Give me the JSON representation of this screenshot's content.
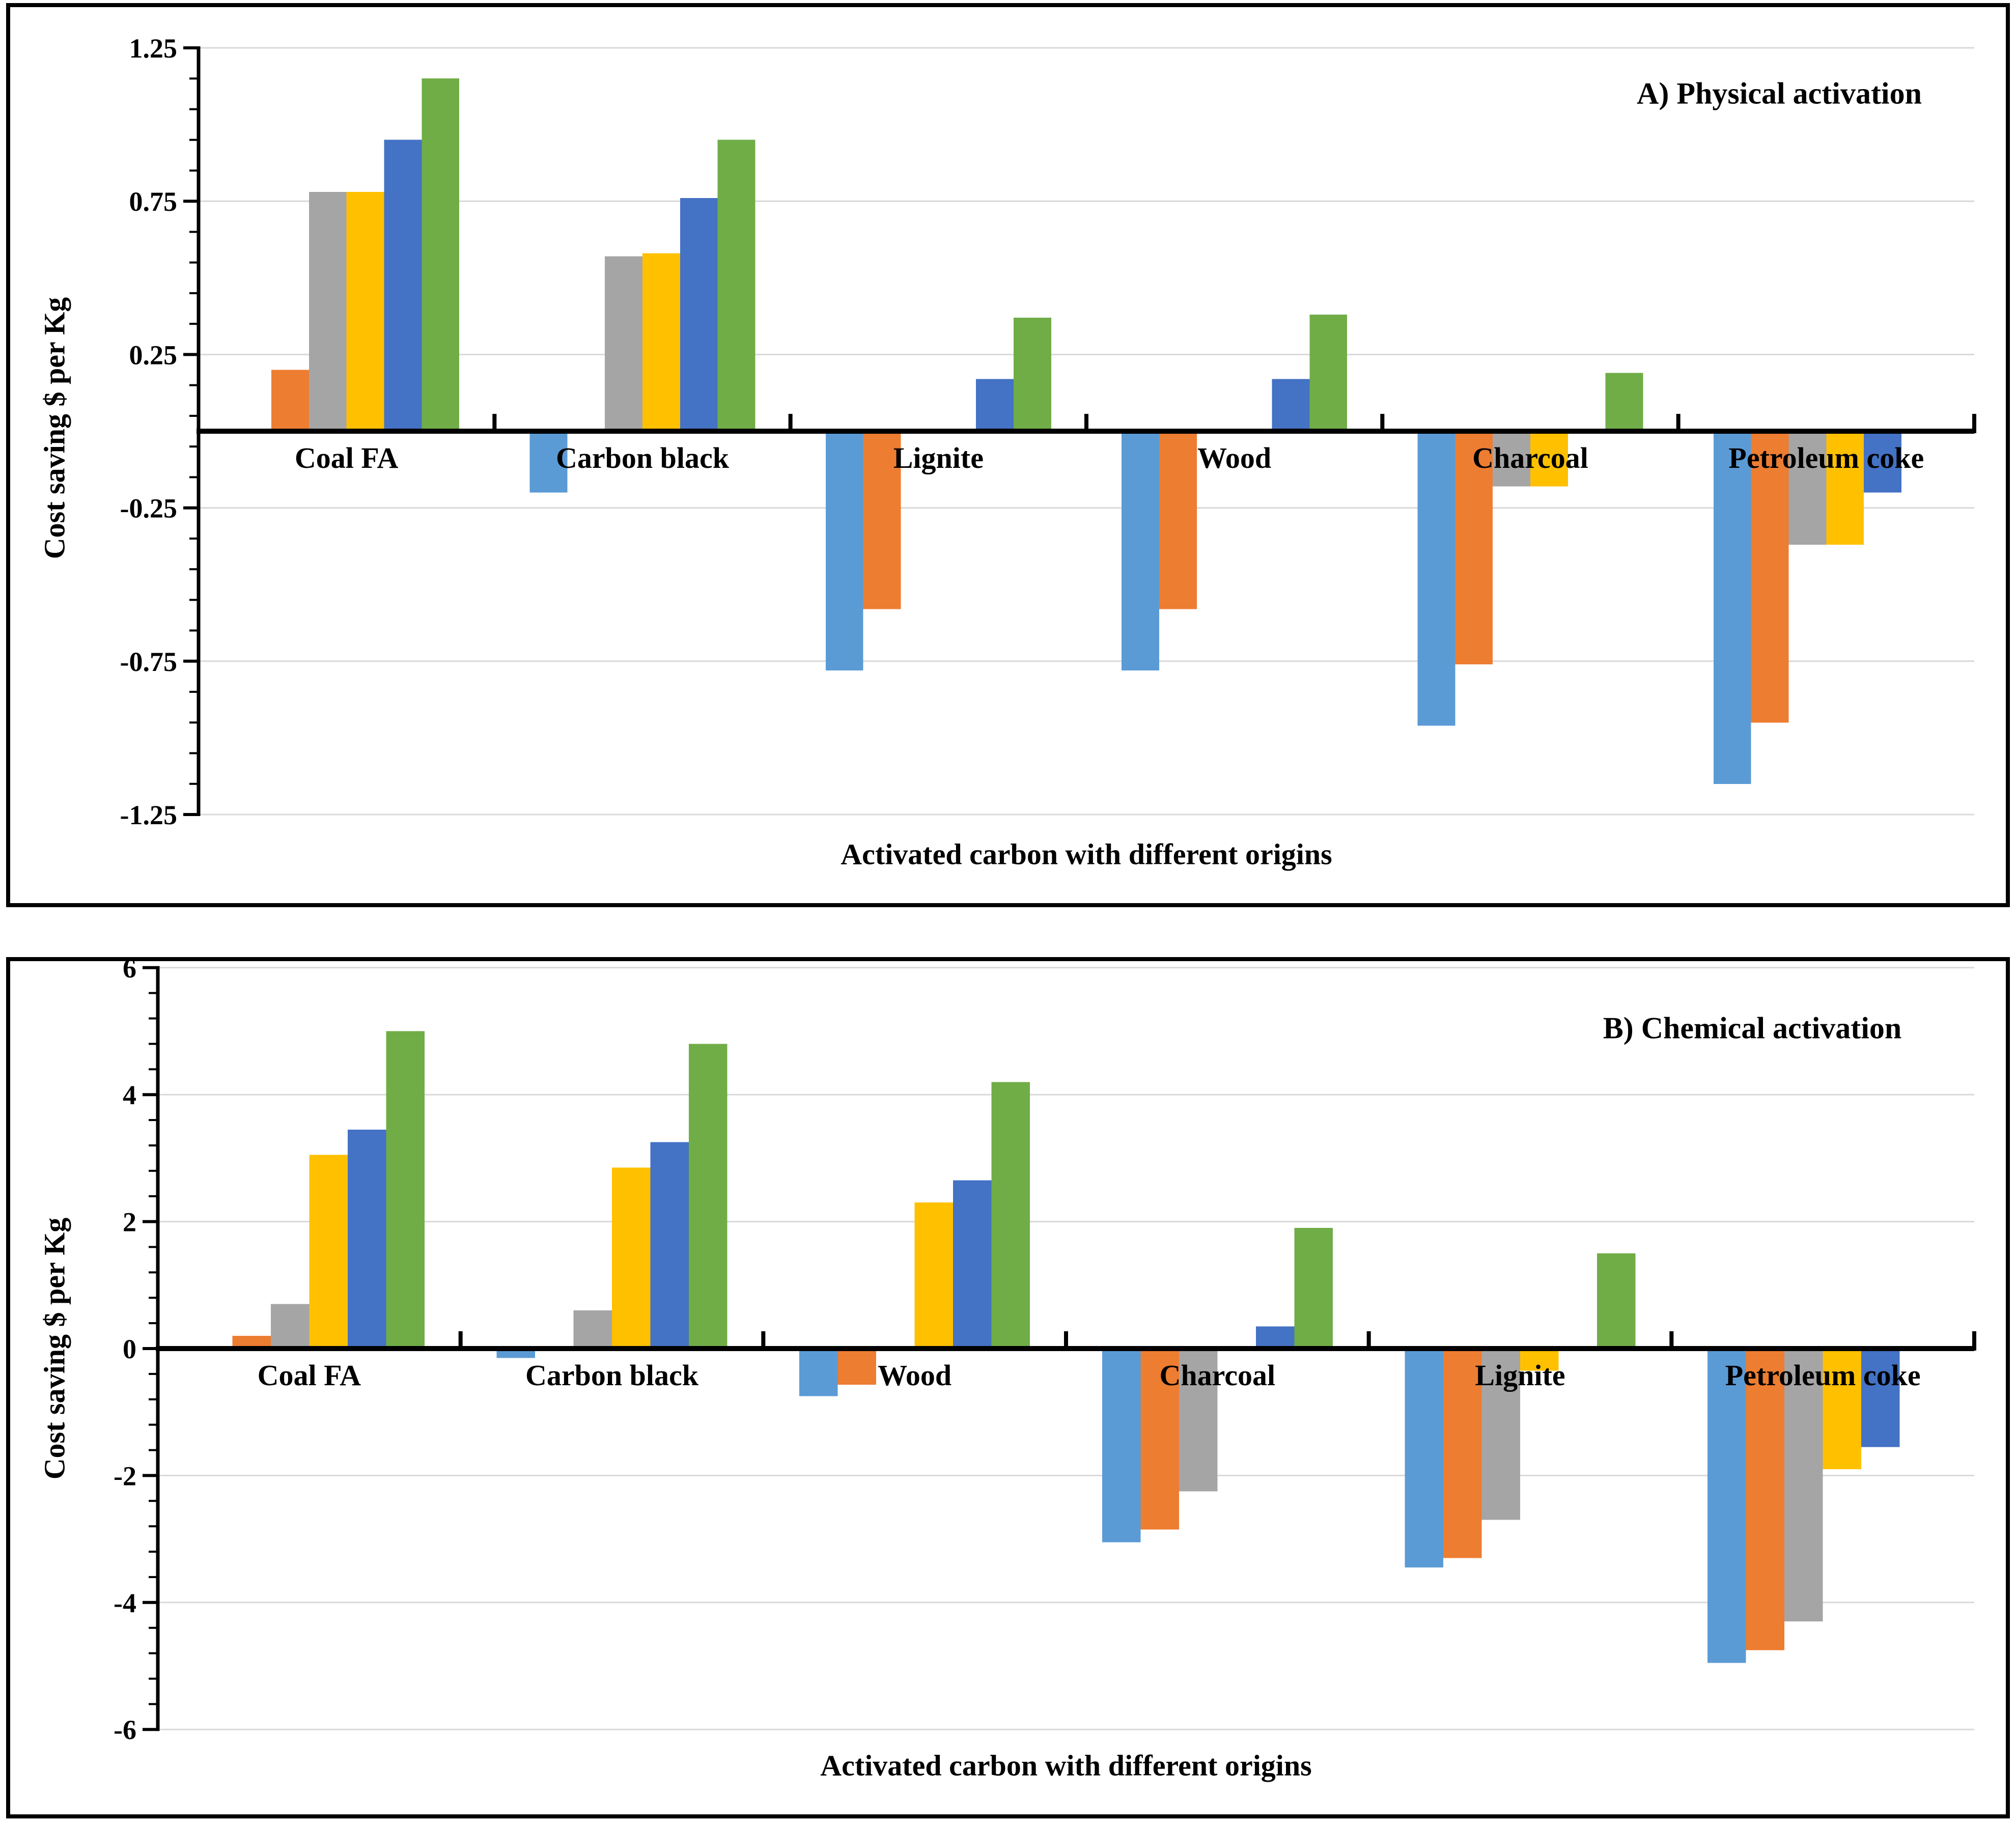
{
  "figure": {
    "background": "#ffffff",
    "panel_border_color": "#000000",
    "gridline_color": "#D9D9D9",
    "axis_color": "#000000"
  },
  "panels": [
    {
      "title": "A) Physical activation",
      "ylabel": "Cost saving $ per Kg",
      "xlabel": "Activated carbon with different origins"
    },
    {
      "title": "B) Chemical activation",
      "ylabel": "Cost saving $ per Kg",
      "xlabel": "Activated carbon with different origins"
    }
  ],
  "chart_data": [
    {
      "type": "bar",
      "title": "A) Physical activation",
      "xlabel": "Activated carbon with different origins",
      "ylabel": "Cost saving $ per Kg",
      "categories": [
        "Coal FA",
        "Carbon black",
        "Lignite",
        "Wood",
        "Charcoal",
        "Petroleum coke"
      ],
      "series": [
        {
          "name": "series_1",
          "color": "#5B9BD5",
          "values": [
            0,
            -0.2,
            -0.78,
            -0.78,
            -0.96,
            -1.15
          ]
        },
        {
          "name": "series_2",
          "color": "#ED7D31",
          "values": [
            0.2,
            0,
            -0.58,
            -0.58,
            -0.76,
            -0.95
          ]
        },
        {
          "name": "series_3",
          "color": "#A5A5A5",
          "values": [
            0.78,
            0.57,
            0,
            0,
            -0.18,
            -0.37
          ]
        },
        {
          "name": "series_4",
          "color": "#FFC000",
          "values": [
            0.78,
            0.58,
            0,
            0,
            -0.18,
            -0.37
          ]
        },
        {
          "name": "series_5",
          "color": "#4472C4",
          "values": [
            0.95,
            0.76,
            0.17,
            0.17,
            0,
            -0.2
          ]
        },
        {
          "name": "series_6",
          "color": "#70AD47",
          "values": [
            1.15,
            0.95,
            0.37,
            0.38,
            0.19,
            0
          ]
        }
      ],
      "ylim": [
        -1.25,
        1.25
      ],
      "yticks": [
        1.25,
        0.75,
        0.25,
        -0.25,
        -0.75,
        -1.25
      ],
      "ytick_labels": [
        "1.25",
        "0.75",
        "0.25",
        "-0.25",
        "-0.75",
        "-1.25"
      ],
      "minor_unit": 0.1,
      "grid": true,
      "legend": "none"
    },
    {
      "type": "bar",
      "title": "B) Chemical activation",
      "xlabel": "Activated carbon with different origins",
      "ylabel": "Cost saving $ per Kg",
      "categories": [
        "Coal FA",
        "Carbon black",
        "Wood",
        "Charcoal",
        "Lignite",
        "Petroleum coke"
      ],
      "series": [
        {
          "name": "series_1",
          "color": "#5B9BD5",
          "values": [
            0,
            -0.15,
            -0.75,
            -3.05,
            -3.45,
            -4.95
          ]
        },
        {
          "name": "series_2",
          "color": "#ED7D31",
          "values": [
            0.2,
            0,
            -0.57,
            -2.85,
            -3.3,
            -4.75
          ]
        },
        {
          "name": "series_3",
          "color": "#A5A5A5",
          "values": [
            0.7,
            0.6,
            0,
            -2.25,
            -2.7,
            -4.3
          ]
        },
        {
          "name": "series_4",
          "color": "#FFC000",
          "values": [
            3.05,
            2.85,
            2.3,
            0,
            -0.35,
            -1.9
          ]
        },
        {
          "name": "series_5",
          "color": "#4472C4",
          "values": [
            3.45,
            3.25,
            2.65,
            0.35,
            0,
            -1.55
          ]
        },
        {
          "name": "series_6",
          "color": "#70AD47",
          "values": [
            5.0,
            4.8,
            4.2,
            1.9,
            1.5,
            0
          ]
        }
      ],
      "ylim": [
        -6,
        6
      ],
      "yticks": [
        6,
        4,
        2,
        0,
        -2,
        -4,
        -6
      ],
      "ytick_labels": [
        "6",
        "4",
        "2",
        "0",
        "-2",
        "-4",
        "-6"
      ],
      "minor_unit": 0.4,
      "grid": true,
      "legend": "none"
    }
  ]
}
